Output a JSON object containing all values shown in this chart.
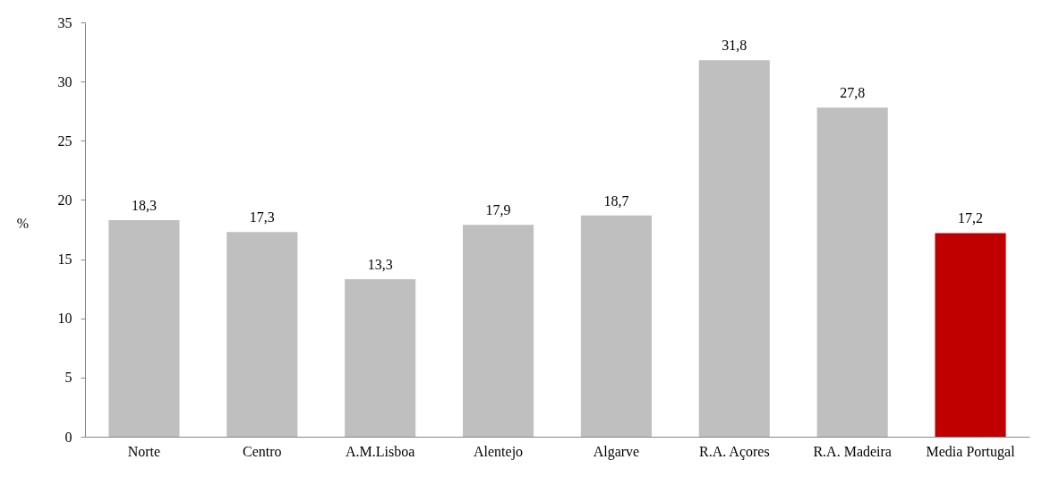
{
  "chart_data": {
    "type": "bar",
    "ylabel": "%",
    "categories": [
      "Norte",
      "Centro",
      "A.M.Lisboa",
      "Alentejo",
      "Algarve",
      "R.A. Açores",
      "R.A. Madeira",
      "Media Portugal"
    ],
    "values": [
      18.3,
      17.3,
      13.3,
      17.9,
      18.7,
      31.8,
      27.8,
      17.2
    ],
    "value_labels": [
      "18,3",
      "17,3",
      "13,3",
      "17,9",
      "18,7",
      "31,8",
      "27,8",
      "17,2"
    ],
    "colors": [
      "#bfbfbf",
      "#bfbfbf",
      "#bfbfbf",
      "#bfbfbf",
      "#bfbfbf",
      "#bfbfbf",
      "#bfbfbf",
      "#c00000"
    ],
    "ylim": [
      0,
      35
    ],
    "yticks": [
      0,
      5,
      10,
      15,
      20,
      25,
      30,
      35
    ]
  }
}
